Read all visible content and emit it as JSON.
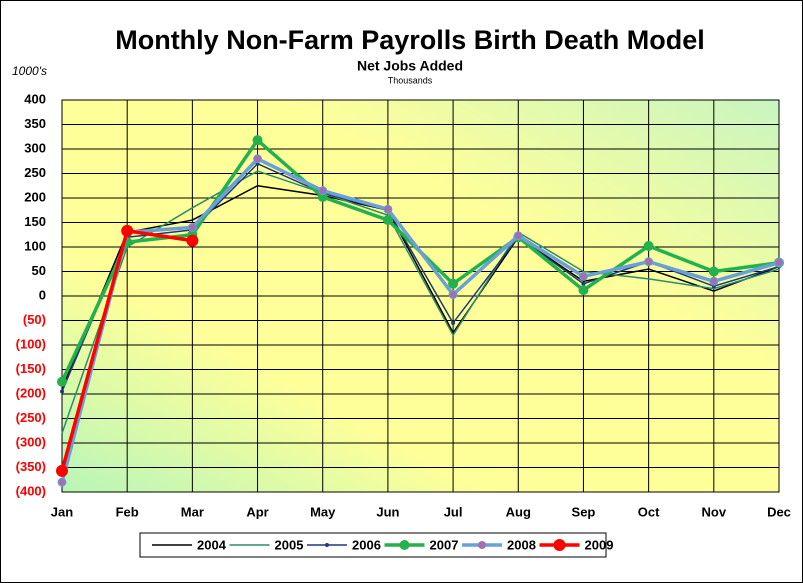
{
  "chart_data": {
    "type": "line",
    "title": "Monthly Non-Farm Payrolls Birth Death Model",
    "subtitle": "Net Jobs Added",
    "subtitle2": "Thousands",
    "y_unit_label": "1000's",
    "categories": [
      "Jan",
      "Feb",
      "Mar",
      "Apr",
      "May",
      "Jun",
      "Jul",
      "Aug",
      "Sep",
      "Oct",
      "Nov",
      "Dec"
    ],
    "ylim": [
      -400,
      400
    ],
    "yticks": [
      {
        "value": -400,
        "label": "(400)"
      },
      {
        "value": -350,
        "label": "(350)"
      },
      {
        "value": -300,
        "label": "(300)"
      },
      {
        "value": -250,
        "label": "(250)"
      },
      {
        "value": -200,
        "label": "(200)"
      },
      {
        "value": -150,
        "label": "(150)"
      },
      {
        "value": -100,
        "label": "(100)"
      },
      {
        "value": -50,
        "label": "(50)"
      },
      0,
      50,
      100,
      150,
      200,
      250,
      300,
      350,
      400
    ],
    "negative_tick_color": "#ff0000",
    "grid": true,
    "legend_position": "bottom",
    "series": [
      {
        "name": "2004",
        "color": "#000000",
        "line_width": 1.5,
        "marker_size": 0,
        "values": [
          -190,
          130,
          155,
          225,
          205,
          175,
          -75,
          120,
          30,
          55,
          10,
          60
        ]
      },
      {
        "name": "2005",
        "color": "#2e8b6e",
        "line_width": 1.5,
        "marker_size": 0,
        "values": [
          -280,
          100,
          180,
          255,
          210,
          165,
          -80,
          130,
          50,
          35,
          15,
          55
        ]
      },
      {
        "name": "2006",
        "color": "#1f3a7a",
        "line_width": 1.5,
        "marker_size": 2,
        "marker_color": "#1f3a7a",
        "values": [
          -195,
          120,
          135,
          270,
          210,
          175,
          -55,
          120,
          25,
          70,
          20,
          60
        ]
      },
      {
        "name": "2007",
        "color": "#22b14c",
        "line_width": 3.5,
        "marker_size": 5,
        "marker_color": "#22b14c",
        "values": [
          -175,
          110,
          125,
          318,
          202,
          155,
          25,
          120,
          12,
          102,
          50,
          68
        ]
      },
      {
        "name": "2008",
        "color": "#6a9fd8",
        "line_width": 3.5,
        "marker_size": 4,
        "marker_color": "#a070b0",
        "values": [
          -380,
          130,
          140,
          280,
          215,
          177,
          3,
          123,
          40,
          70,
          30,
          68
        ]
      },
      {
        "name": "2009",
        "color": "#ff0000",
        "line_width": 3.5,
        "marker_size": 6,
        "marker_color": "#ff0000",
        "values": [
          -357,
          133,
          113,
          null,
          null,
          null,
          null,
          null,
          null,
          null,
          null,
          null
        ]
      }
    ]
  }
}
